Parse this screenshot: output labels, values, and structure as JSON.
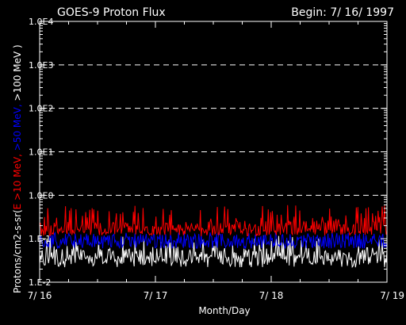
{
  "chart_data": {
    "type": "line",
    "title": "GOES-9 Proton Flux",
    "begin_label": "Begin: 7/ 16/ 1997",
    "xlabel": "Month/Day",
    "ylabel_parts": [
      {
        "text": "Protons/cm2-s-sr(",
        "color": "#ffffff"
      },
      {
        "text": "E >10 MeV, ",
        "color": "#ff0000"
      },
      {
        "text": ">50 MeV, ",
        "color": "#0000ff"
      },
      {
        "text": ">100 MeV )",
        "color": "#ffffff"
      }
    ],
    "x_ticks": [
      "7/ 16",
      "7/ 17",
      "7/ 18",
      "7/ 19"
    ],
    "xlim_days": [
      0,
      3
    ],
    "y_scale": "log",
    "ylim": [
      0.01,
      10000
    ],
    "y_ticks": [
      {
        "value": 0.01,
        "label": "1.E-2"
      },
      {
        "value": 0.1,
        "label": "1.E-1"
      },
      {
        "value": 1,
        "label": "1.0E0"
      },
      {
        "value": 10,
        "label": "1.0E1"
      },
      {
        "value": 100,
        "label": "1.0E2"
      },
      {
        "value": 1000,
        "label": "1.0E3"
      },
      {
        "value": 10000,
        "label": "1.0E4"
      }
    ],
    "grid_y": [
      1,
      10,
      100,
      1000
    ],
    "background": "#000000",
    "series": [
      {
        "color": "#ffffff",
        "approx_level": 0.04,
        "range": [
          0.022,
          0.12
        ]
      },
      {
        "color": "#0000ff",
        "approx_level": 0.09,
        "range": [
          0.06,
          0.14
        ]
      },
      {
        "color": "#ff0000",
        "approx_level": 0.17,
        "range": [
          0.12,
          0.6
        ]
      }
    ]
  }
}
